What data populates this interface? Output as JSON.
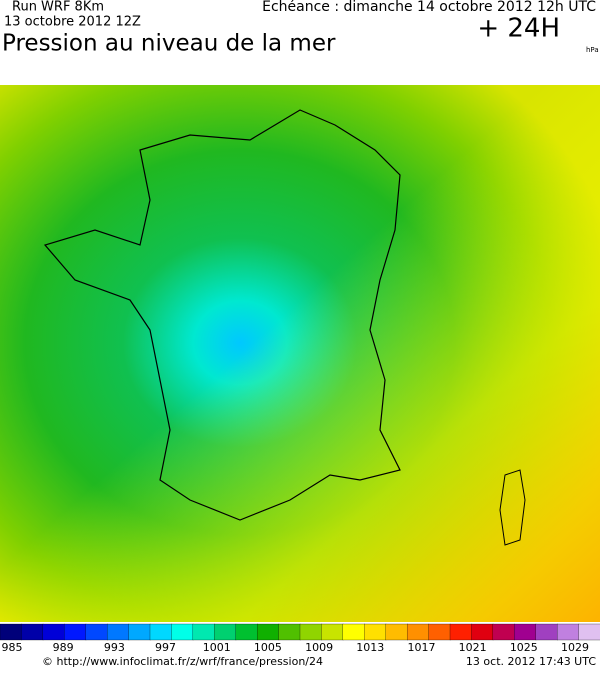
{
  "header": {
    "run": "Run WRF 8Km",
    "run_date": "13 octobre 2012 12Z",
    "forecast": "Echéance : dimanche 14 octobre 2012 12h UTC",
    "title": "Pression au niveau de la mer",
    "lead": "+ 24H",
    "unit": "hPa"
  },
  "legend": {
    "labels": [
      985,
      989,
      993,
      997,
      1001,
      1005,
      1009,
      1013,
      1017,
      1021,
      1025,
      1029
    ],
    "colors": [
      "#00007a",
      "#0000a8",
      "#0000d8",
      "#0018ff",
      "#0048ff",
      "#0078ff",
      "#00a8ff",
      "#00d8ff",
      "#00ffe8",
      "#00e8b0",
      "#00d070",
      "#00c030",
      "#10b000",
      "#50c000",
      "#90d400",
      "#c8e400",
      "#ffff00",
      "#ffe000",
      "#ffbc00",
      "#ff9000",
      "#ff6000",
      "#ff2000",
      "#e00010",
      "#c00050",
      "#a00090",
      "#a040c0",
      "#c080e0",
      "#e0c0f0"
    ]
  },
  "footer": {
    "source": "© http://www.infoclimat.fr/z/wrf/france/pression/24",
    "timestamp": "13 oct. 2012 17:43 UTC"
  }
}
